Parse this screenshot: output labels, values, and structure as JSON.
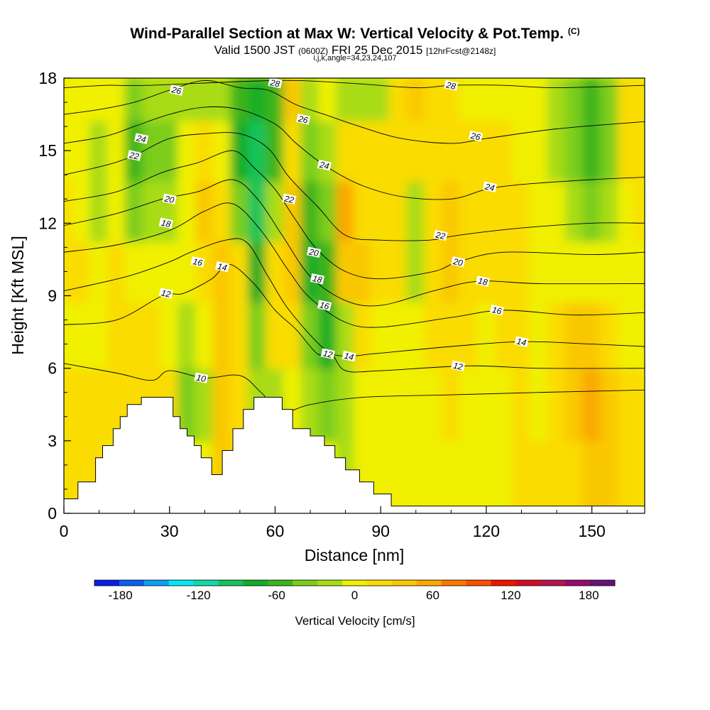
{
  "header": {
    "title": "Wind-Parallel Section at Max W: Vertical Velocity & Pot.Temp.",
    "copyright": "(C)",
    "valid_a": "Valid 1500 JST",
    "valid_b": "(0600Z)",
    "valid_c": "FRI 25 Dec 2015",
    "valid_d": "[12hrFcst@2148z]",
    "indices": "i,j,k,angle=34,23,24,107"
  },
  "chart_data": {
    "type": "heatmap",
    "title": "Wind-Parallel Section at Max W: Vertical Velocity & Pot.Temp.",
    "xlabel": "Distance [nm]",
    "ylabel": "Height [Kft MSL]",
    "xlim": [
      0,
      165
    ],
    "ylim": [
      0,
      18
    ],
    "xticks": [
      0,
      30,
      60,
      90,
      120,
      150
    ],
    "yticks": [
      0,
      3,
      6,
      9,
      12,
      15,
      18
    ],
    "grid": false,
    "colorbar": {
      "label": "Vertical Velocity [cm/s]",
      "range": [
        -200,
        200
      ],
      "tick_values": [
        -180,
        -120,
        -60,
        0,
        60,
        120,
        180
      ],
      "tick_labels": [
        "-180",
        "-120",
        "-60",
        "0",
        "60",
        "120",
        "180"
      ],
      "colors": [
        "#0a1ee6",
        "#0a5ff0",
        "#0aa0f5",
        "#05e6f5",
        "#14d7aa",
        "#14c35a",
        "#14ad28",
        "#3cb41e",
        "#7ccd1a",
        "#a8dc14",
        "#f0f000",
        "#fadc00",
        "#fac800",
        "#faa800",
        "#fa7800",
        "#fa5000",
        "#f01400",
        "#d20a28",
        "#b41450",
        "#960a6e",
        "#641478"
      ]
    },
    "vertical_velocity_bands": [
      {
        "x": 0,
        "w": [
          20,
          20,
          5,
          15,
          10,
          5,
          5
        ]
      },
      {
        "x": 5,
        "w": [
          20,
          15,
          0,
          10,
          5,
          0,
          0
        ]
      },
      {
        "x": 10,
        "w": [
          20,
          10,
          5,
          0,
          -10,
          -10,
          -5
        ]
      },
      {
        "x": 15,
        "w": [
          null,
          20,
          15,
          10,
          -5,
          -5,
          0
        ]
      },
      {
        "x": 20,
        "w": [
          null,
          20,
          20,
          5,
          -40,
          -60,
          -30
        ]
      },
      {
        "x": 25,
        "w": [
          null,
          20,
          10,
          5,
          -20,
          -40,
          -20
        ]
      },
      {
        "x": 30,
        "w": [
          null,
          15,
          0,
          0,
          -10,
          -30,
          -20
        ]
      },
      {
        "x": 35,
        "w": [
          null,
          -30,
          -20,
          0,
          5,
          0,
          -20
        ]
      },
      {
        "x": 40,
        "w": [
          null,
          -20,
          -5,
          20,
          30,
          10,
          -10
        ]
      },
      {
        "x": 45,
        "w": [
          35,
          40,
          30,
          40,
          20,
          5,
          -20
        ]
      },
      {
        "x": 50,
        "w": [
          10,
          20,
          20,
          10,
          -40,
          -80,
          -60
        ]
      },
      {
        "x": 55,
        "w": [
          null,
          -20,
          -40,
          -70,
          -100,
          -100,
          -80
        ]
      },
      {
        "x": 60,
        "w": [
          null,
          -10,
          10,
          20,
          -20,
          -60,
          -60
        ]
      },
      {
        "x": 65,
        "w": [
          null,
          0,
          20,
          40,
          30,
          20,
          30
        ]
      },
      {
        "x": 70,
        "w": [
          null,
          -20,
          -40,
          -70,
          -60,
          -40,
          -20
        ]
      },
      {
        "x": 75,
        "w": [
          null,
          -30,
          -70,
          -60,
          -40,
          -20,
          0
        ]
      },
      {
        "x": 80,
        "w": [
          -10,
          -10,
          -10,
          30,
          50,
          20,
          -10
        ]
      },
      {
        "x": 85,
        "w": [
          -5,
          5,
          20,
          40,
          20,
          10,
          -20
        ]
      },
      {
        "x": 90,
        "w": [
          -5,
          -5,
          0,
          10,
          10,
          15,
          -10
        ]
      },
      {
        "x": 95,
        "w": [
          -5,
          -5,
          0,
          10,
          15,
          20,
          10
        ]
      },
      {
        "x": 100,
        "w": [
          -5,
          -5,
          0,
          -10,
          -15,
          20,
          30
        ]
      },
      {
        "x": 105,
        "w": [
          -5,
          0,
          10,
          15,
          20,
          20,
          10
        ]
      },
      {
        "x": 110,
        "w": [
          -5,
          10,
          20,
          30,
          30,
          20,
          10
        ]
      },
      {
        "x": 115,
        "w": [
          0,
          5,
          10,
          20,
          20,
          10,
          5
        ]
      },
      {
        "x": 120,
        "w": [
          0,
          0,
          5,
          15,
          15,
          10,
          5
        ]
      },
      {
        "x": 125,
        "w": [
          0,
          5,
          15,
          20,
          15,
          10,
          5
        ]
      },
      {
        "x": 130,
        "w": [
          10,
          20,
          20,
          20,
          15,
          5,
          0
        ]
      },
      {
        "x": 135,
        "w": [
          10,
          5,
          0,
          -5,
          5,
          0,
          0
        ]
      },
      {
        "x": 140,
        "w": [
          10,
          15,
          20,
          0,
          -5,
          -10,
          -10
        ]
      },
      {
        "x": 145,
        "w": [
          25,
          45,
          30,
          5,
          -20,
          -40,
          -40
        ]
      },
      {
        "x": 150,
        "w": [
          40,
          50,
          30,
          -5,
          -30,
          -60,
          -50
        ]
      },
      {
        "x": 155,
        "w": [
          30,
          30,
          20,
          5,
          -20,
          -30,
          -40
        ]
      },
      {
        "x": 160,
        "w": [
          10,
          10,
          5,
          5,
          5,
          10,
          10
        ]
      },
      {
        "x": 165,
        "w": [
          10,
          10,
          5,
          5,
          10,
          15,
          10
        ]
      }
    ],
    "band_heights_kft": [
      1.5,
      4.5,
      7.5,
      10,
      12.5,
      15,
      17.5
    ],
    "terrain_kft": [
      [
        0,
        0.6
      ],
      [
        4,
        1.3
      ],
      [
        9,
        2.3
      ],
      [
        11,
        2.8
      ],
      [
        14,
        3.5
      ],
      [
        16,
        4.0
      ],
      [
        18,
        4.5
      ],
      [
        22,
        4.8
      ],
      [
        29,
        4.8
      ],
      [
        31,
        4.0
      ],
      [
        33,
        3.5
      ],
      [
        35,
        3.2
      ],
      [
        37,
        2.8
      ],
      [
        39,
        2.3
      ],
      [
        42,
        1.6
      ],
      [
        45,
        2.6
      ],
      [
        48,
        3.5
      ],
      [
        51,
        4.3
      ],
      [
        54,
        4.8
      ],
      [
        60,
        4.8
      ],
      [
        62,
        4.3
      ],
      [
        65,
        3.5
      ],
      [
        70,
        3.2
      ],
      [
        74,
        2.8
      ],
      [
        77,
        2.3
      ],
      [
        80,
        1.8
      ],
      [
        84,
        1.3
      ],
      [
        88,
        0.8
      ],
      [
        93,
        0.3
      ],
      [
        165,
        0.3
      ]
    ],
    "potential_temperature_contours": [
      {
        "label": "10",
        "pts": [
          [
            0,
            6.2
          ],
          [
            15,
            5.8
          ],
          [
            25,
            5.5
          ],
          [
            30,
            5.9
          ],
          [
            40,
            5.6
          ],
          [
            50,
            5.7
          ],
          [
            56,
            5.0
          ],
          [
            62,
            4.2
          ],
          [
            70,
            4.5
          ],
          [
            85,
            4.8
          ],
          [
            110,
            4.9
          ],
          [
            135,
            5.0
          ],
          [
            165,
            5.1
          ]
        ]
      },
      {
        "label": "12",
        "pts": [
          [
            0,
            7.8
          ],
          [
            15,
            8.0
          ],
          [
            28,
            9.0
          ],
          [
            34,
            9.1
          ],
          [
            42,
            9.7
          ],
          [
            47,
            10.3
          ],
          [
            54,
            9.5
          ],
          [
            60,
            8.4
          ],
          [
            66,
            7.6
          ],
          [
            72,
            6.6
          ],
          [
            76,
            6.6
          ],
          [
            80,
            5.9
          ],
          [
            90,
            5.9
          ],
          [
            115,
            6.1
          ],
          [
            135,
            6.0
          ],
          [
            165,
            6.0
          ]
        ]
      },
      {
        "label": "14",
        "pts": [
          [
            0,
            9.2
          ],
          [
            18,
            9.8
          ],
          [
            30,
            10.4
          ],
          [
            36,
            10.8
          ],
          [
            46,
            11.3
          ],
          [
            52,
            11.2
          ],
          [
            58,
            9.8
          ],
          [
            64,
            8.4
          ],
          [
            74,
            6.8
          ],
          [
            80,
            6.5
          ],
          [
            88,
            6.6
          ],
          [
            110,
            6.9
          ],
          [
            130,
            7.1
          ],
          [
            150,
            7.0
          ],
          [
            165,
            6.9
          ]
        ]
      },
      {
        "label": "16",
        "pts": [
          [
            0,
            10.8
          ],
          [
            15,
            11.1
          ],
          [
            30,
            11.7
          ],
          [
            40,
            12.5
          ],
          [
            48,
            12.8
          ],
          [
            56,
            11.7
          ],
          [
            64,
            10.0
          ],
          [
            70,
            8.9
          ],
          [
            80,
            7.9
          ],
          [
            90,
            7.7
          ],
          [
            110,
            8.1
          ],
          [
            125,
            8.4
          ],
          [
            145,
            8.2
          ],
          [
            165,
            8.3
          ]
        ]
      },
      {
        "label": "18",
        "pts": [
          [
            0,
            11.9
          ],
          [
            15,
            12.4
          ],
          [
            28,
            13.0
          ],
          [
            38,
            13.3
          ],
          [
            48,
            13.8
          ],
          [
            55,
            13.0
          ],
          [
            62,
            11.5
          ],
          [
            70,
            9.8
          ],
          [
            80,
            8.8
          ],
          [
            90,
            8.6
          ],
          [
            105,
            9.2
          ],
          [
            118,
            9.6
          ],
          [
            135,
            9.5
          ],
          [
            165,
            9.5
          ]
        ]
      },
      {
        "label": "20",
        "pts": [
          [
            0,
            12.9
          ],
          [
            15,
            13.3
          ],
          [
            28,
            14.1
          ],
          [
            38,
            14.5
          ],
          [
            48,
            15.0
          ],
          [
            54,
            14.3
          ],
          [
            60,
            13.4
          ],
          [
            66,
            12.1
          ],
          [
            72,
            10.9
          ],
          [
            80,
            10.0
          ],
          [
            90,
            9.7
          ],
          [
            105,
            10.0
          ],
          [
            112,
            10.4
          ],
          [
            125,
            10.8
          ],
          [
            150,
            10.7
          ],
          [
            165,
            10.8
          ]
        ]
      },
      {
        "label": "22",
        "pts": [
          [
            0,
            14.0
          ],
          [
            12,
            14.4
          ],
          [
            20,
            14.8
          ],
          [
            30,
            15.5
          ],
          [
            40,
            15.7
          ],
          [
            50,
            15.7
          ],
          [
            58,
            15.1
          ],
          [
            64,
            13.9
          ],
          [
            72,
            12.7
          ],
          [
            80,
            11.5
          ],
          [
            90,
            11.3
          ],
          [
            104,
            11.3
          ],
          [
            112,
            11.5
          ],
          [
            130,
            11.8
          ],
          [
            150,
            12.0
          ],
          [
            165,
            12.0
          ]
        ]
      },
      {
        "label": "24",
        "pts": [
          [
            0,
            15.3
          ],
          [
            12,
            15.6
          ],
          [
            20,
            16.0
          ],
          [
            30,
            16.5
          ],
          [
            40,
            16.8
          ],
          [
            50,
            16.7
          ],
          [
            60,
            16.1
          ],
          [
            66,
            15.3
          ],
          [
            74,
            14.4
          ],
          [
            84,
            13.6
          ],
          [
            96,
            13.1
          ],
          [
            110,
            13.0
          ],
          [
            120,
            13.4
          ],
          [
            130,
            13.6
          ],
          [
            150,
            13.8
          ],
          [
            165,
            13.9
          ]
        ]
      },
      {
        "label": "26",
        "pts": [
          [
            0,
            16.5
          ],
          [
            10,
            16.7
          ],
          [
            20,
            17.0
          ],
          [
            30,
            17.5
          ],
          [
            40,
            17.9
          ],
          [
            50,
            17.6
          ],
          [
            58,
            17.5
          ],
          [
            66,
            16.9
          ],
          [
            74,
            16.5
          ],
          [
            84,
            16.0
          ],
          [
            96,
            15.5
          ],
          [
            110,
            15.3
          ],
          [
            120,
            15.5
          ],
          [
            140,
            15.9
          ],
          [
            165,
            16.2
          ]
        ]
      },
      {
        "label": "28",
        "pts": [
          [
            0,
            17.6
          ],
          [
            12,
            17.7
          ],
          [
            24,
            17.7
          ],
          [
            60,
            17.9
          ],
          [
            80,
            17.8
          ],
          [
            100,
            17.6
          ],
          [
            110,
            17.7
          ],
          [
            125,
            17.7
          ],
          [
            140,
            17.6
          ],
          [
            165,
            17.7
          ]
        ]
      }
    ],
    "contour_labels": [
      {
        "text": "10",
        "x": 39,
        "y": 5.6
      },
      {
        "text": "12",
        "x": 29,
        "y": 9.1
      },
      {
        "text": "12",
        "x": 75,
        "y": 6.6
      },
      {
        "text": "12",
        "x": 112,
        "y": 6.1
      },
      {
        "text": "14",
        "x": 45,
        "y": 10.2
      },
      {
        "text": "14",
        "x": 81,
        "y": 6.5
      },
      {
        "text": "14",
        "x": 130,
        "y": 7.1
      },
      {
        "text": "16",
        "x": 38,
        "y": 10.4
      },
      {
        "text": "16",
        "x": 74,
        "y": 8.6
      },
      {
        "text": "16",
        "x": 123,
        "y": 8.4
      },
      {
        "text": "18",
        "x": 29,
        "y": 12.0
      },
      {
        "text": "18",
        "x": 72,
        "y": 9.7
      },
      {
        "text": "18",
        "x": 119,
        "y": 9.6
      },
      {
        "text": "20",
        "x": 30,
        "y": 13.0
      },
      {
        "text": "20",
        "x": 71,
        "y": 10.8
      },
      {
        "text": "20",
        "x": 112,
        "y": 10.4
      },
      {
        "text": "22",
        "x": 20,
        "y": 14.8
      },
      {
        "text": "22",
        "x": 64,
        "y": 13.0
      },
      {
        "text": "22",
        "x": 107,
        "y": 11.5
      },
      {
        "text": "24",
        "x": 22,
        "y": 15.5
      },
      {
        "text": "24",
        "x": 74,
        "y": 14.4
      },
      {
        "text": "24",
        "x": 121,
        "y": 13.5
      },
      {
        "text": "26",
        "x": 32,
        "y": 17.5
      },
      {
        "text": "26",
        "x": 68,
        "y": 16.3
      },
      {
        "text": "26",
        "x": 117,
        "y": 15.6
      },
      {
        "text": "28",
        "x": 60,
        "y": 17.8
      },
      {
        "text": "28",
        "x": 110,
        "y": 17.7
      }
    ]
  }
}
